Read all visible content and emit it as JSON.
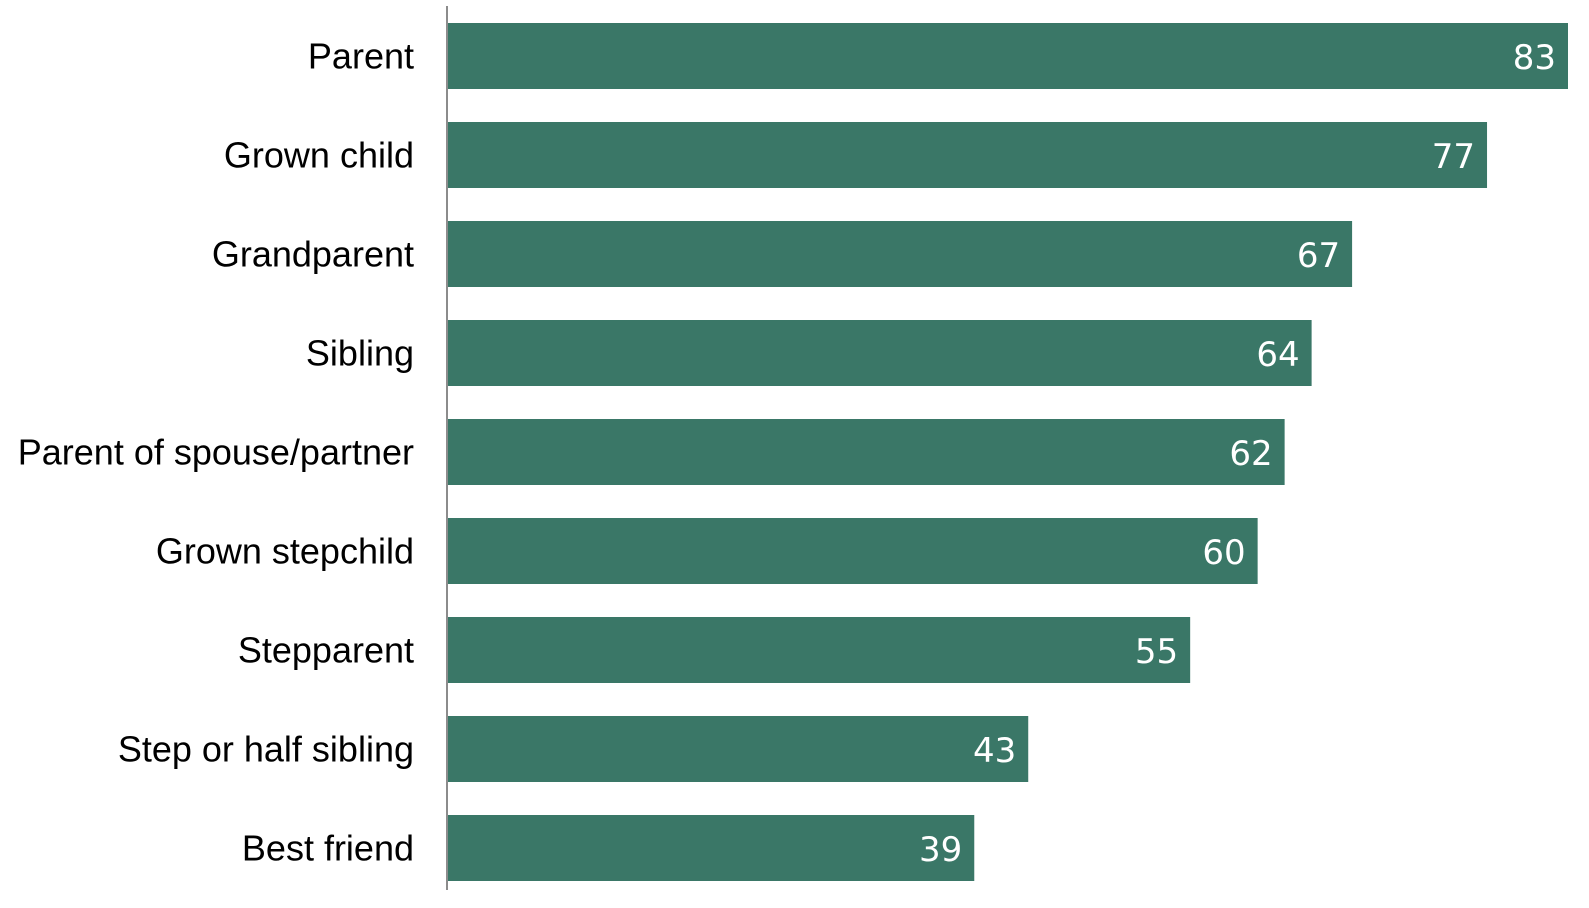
{
  "chart_data": {
    "type": "bar",
    "orientation": "horizontal",
    "categories": [
      "Parent",
      "Grown child",
      "Grandparent",
      "Sibling",
      "Parent of spouse/partner",
      "Grown stepchild",
      "Stepparent",
      "Step or half sibling",
      "Best friend"
    ],
    "values": [
      83,
      77,
      67,
      64,
      62,
      60,
      55,
      43,
      39
    ],
    "title": "",
    "xlabel": "",
    "ylabel": "",
    "xlim": [
      0,
      83
    ],
    "grid": false,
    "legend": "none",
    "data_labels": "inside-end",
    "colors": {
      "bar": "#3a7767",
      "axis_line": "#8c8c8c",
      "category_text": "#000000",
      "value_text": "#ffffff"
    }
  }
}
